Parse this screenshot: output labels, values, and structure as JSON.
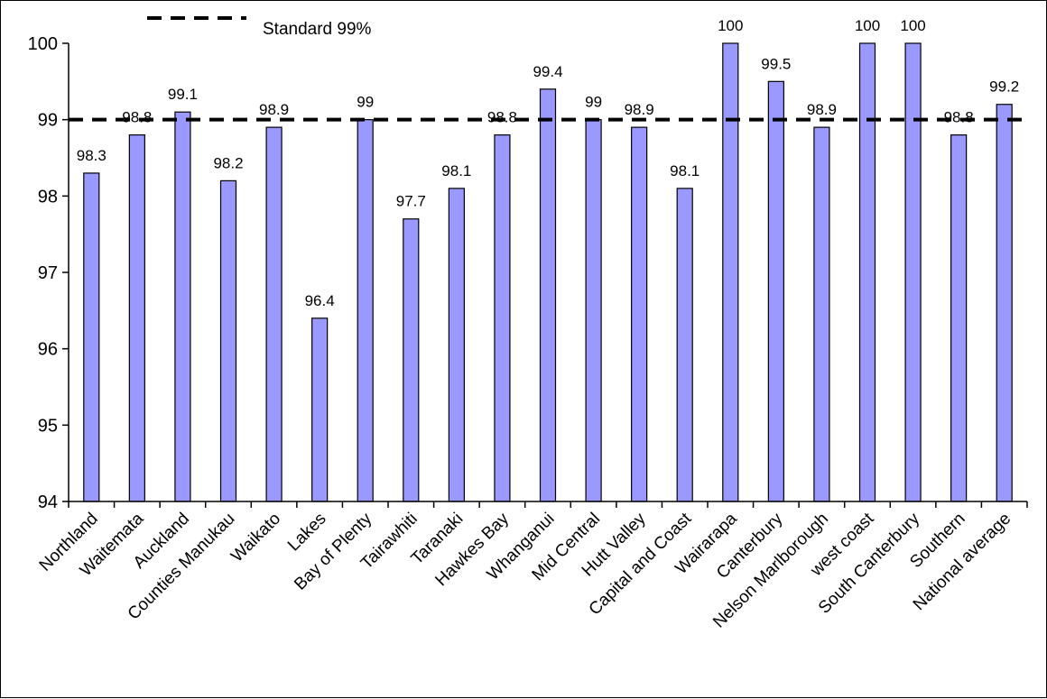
{
  "chart_data": {
    "type": "bar",
    "categories": [
      "Northland",
      "Waitemata",
      "Auckland",
      "Counties Manukau",
      "Waikato",
      "Lakes",
      "Bay of Plenty",
      "Tairawhiti",
      "Taranaki",
      "Hawkes Bay",
      "Whanganui",
      "Mid Central",
      "Hutt Valley",
      "Capital and Coast",
      "Wairarapa",
      "Canterbury",
      "Nelson Marlborough",
      "west coast",
      "South Canterbury",
      "Southern",
      "National average"
    ],
    "values": [
      98.3,
      98.8,
      99.1,
      98.2,
      98.9,
      96.4,
      99,
      97.7,
      98.1,
      98.8,
      99.4,
      99,
      98.9,
      98.1,
      100,
      99.5,
      98.9,
      100,
      100,
      98.8,
      99.2
    ],
    "value_labels": [
      "98.3",
      "98.8",
      "99.1",
      "98.2",
      "98.9",
      "96.4",
      "99",
      "97.7",
      "98.1",
      "98.8",
      "99.4",
      "99",
      "98.9",
      "98.1",
      "100",
      "99.5",
      "98.9",
      "100",
      "100",
      "98.8",
      "99.2"
    ],
    "ylim": [
      94,
      100
    ],
    "yticks": [
      "94",
      "95",
      "96",
      "97",
      "98",
      "99",
      "100"
    ],
    "bar_color": "#9999ff",
    "reference_line": {
      "label": "Standard 99%",
      "value": 99,
      "style": "dashed",
      "color": "#000000"
    },
    "legend": {
      "placement": "top-left",
      "entries": [
        "Standard 99%"
      ]
    },
    "grid": false
  }
}
